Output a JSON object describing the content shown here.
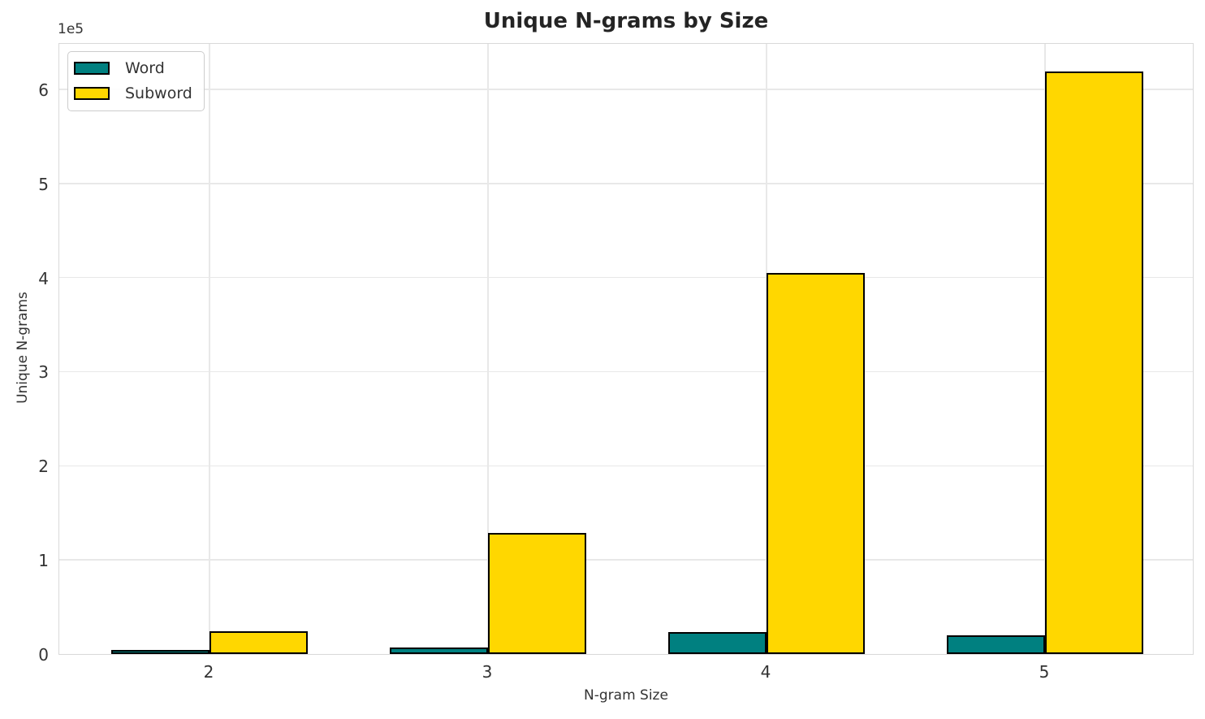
{
  "chart": {
    "title": "Unique N-grams by Size",
    "xlabel": "N-gram Size",
    "ylabel": "Unique N-grams",
    "offset_label": "1e5"
  },
  "chart_data": {
    "type": "bar",
    "title": "Unique N-grams by Size",
    "xlabel": "N-gram Size",
    "ylabel": "Unique N-grams",
    "categories": [
      "2",
      "3",
      "4",
      "5"
    ],
    "series": [
      {
        "name": "Word",
        "color": "#008080",
        "values": [
          4500,
          7000,
          23000,
          20000
        ]
      },
      {
        "name": "Subword",
        "color": "#FFD700",
        "values": [
          24000,
          129000,
          405000,
          619000
        ]
      }
    ],
    "bar_edge_color": "#000000",
    "ylim": [
      0,
      650000
    ],
    "yticks": [
      0,
      100000,
      200000,
      300000,
      400000,
      500000,
      600000
    ],
    "ytick_labels": [
      "0",
      "1",
      "2",
      "3",
      "4",
      "5",
      "6"
    ],
    "y_offset_text": "1e5",
    "grid": "both",
    "legend_position": "upper left"
  }
}
